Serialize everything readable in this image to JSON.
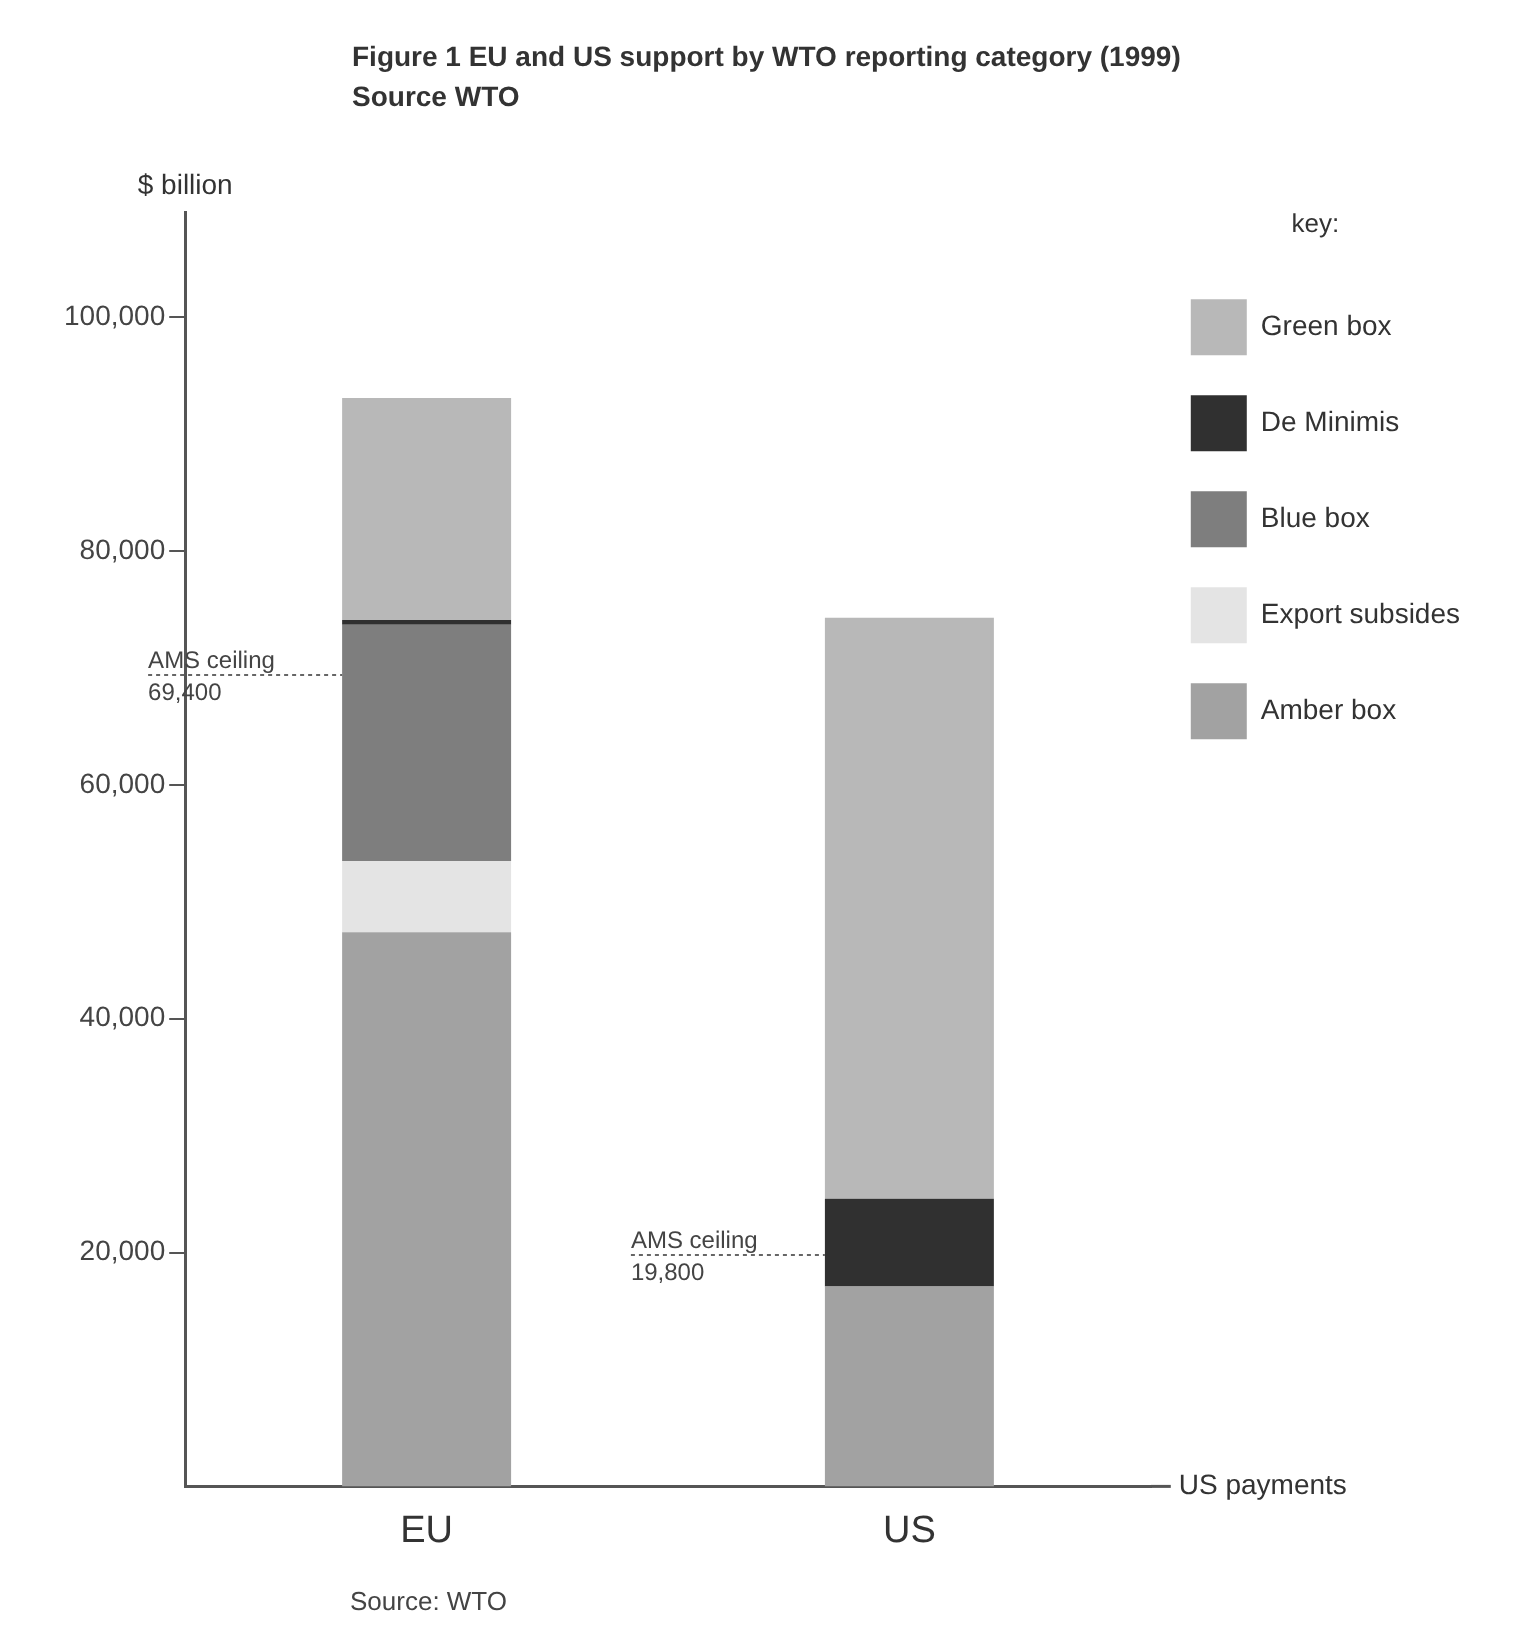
{
  "chart_data": {
    "type": "bar",
    "title": "Figure 1  EU and US support by WTO reporting category (1999)",
    "subtitle": "Source WTO",
    "xlabel": "US payments",
    "ylabel": "$ billion",
    "legend_title": "key:",
    "legend": "top right",
    "stacked": true,
    "categories": [
      "EU",
      "US"
    ],
    "series": [
      {
        "name": "Amber box",
        "color": "#a2a2a2",
        "values": [
          47400,
          17100
        ]
      },
      {
        "name": "Export subsides",
        "color": "#e4e4e4",
        "values": [
          6100,
          null
        ]
      },
      {
        "name": "Blue box",
        "color": "#7e7e7e",
        "values": [
          20200,
          null
        ]
      },
      {
        "name": "De Minimis",
        "color": "#303030",
        "values": [
          400,
          7500
        ]
      },
      {
        "name": "Green box",
        "color": "#b8b8b8",
        "values": [
          19000,
          49700
        ]
      }
    ],
    "ylim": [
      0,
      109000
    ],
    "yticks": [
      {
        "value": 20000,
        "label": "20,000"
      },
      {
        "value": 40000,
        "label": "40,000"
      },
      {
        "value": 60000,
        "label": "60,000"
      },
      {
        "value": 80000,
        "label": "80,000"
      },
      {
        "value": 100000,
        "label": "100,000"
      }
    ],
    "ref_lines": [
      {
        "axis": "y",
        "value": 69400,
        "label": "AMS ceiling\n69,400",
        "line_style": "dashed"
      },
      {
        "axis": "y",
        "value": 19800,
        "label": "AMS ceiling\n19,800",
        "line_style": "dashed"
      }
    ],
    "annotations": [
      "Source: WTO"
    ]
  }
}
